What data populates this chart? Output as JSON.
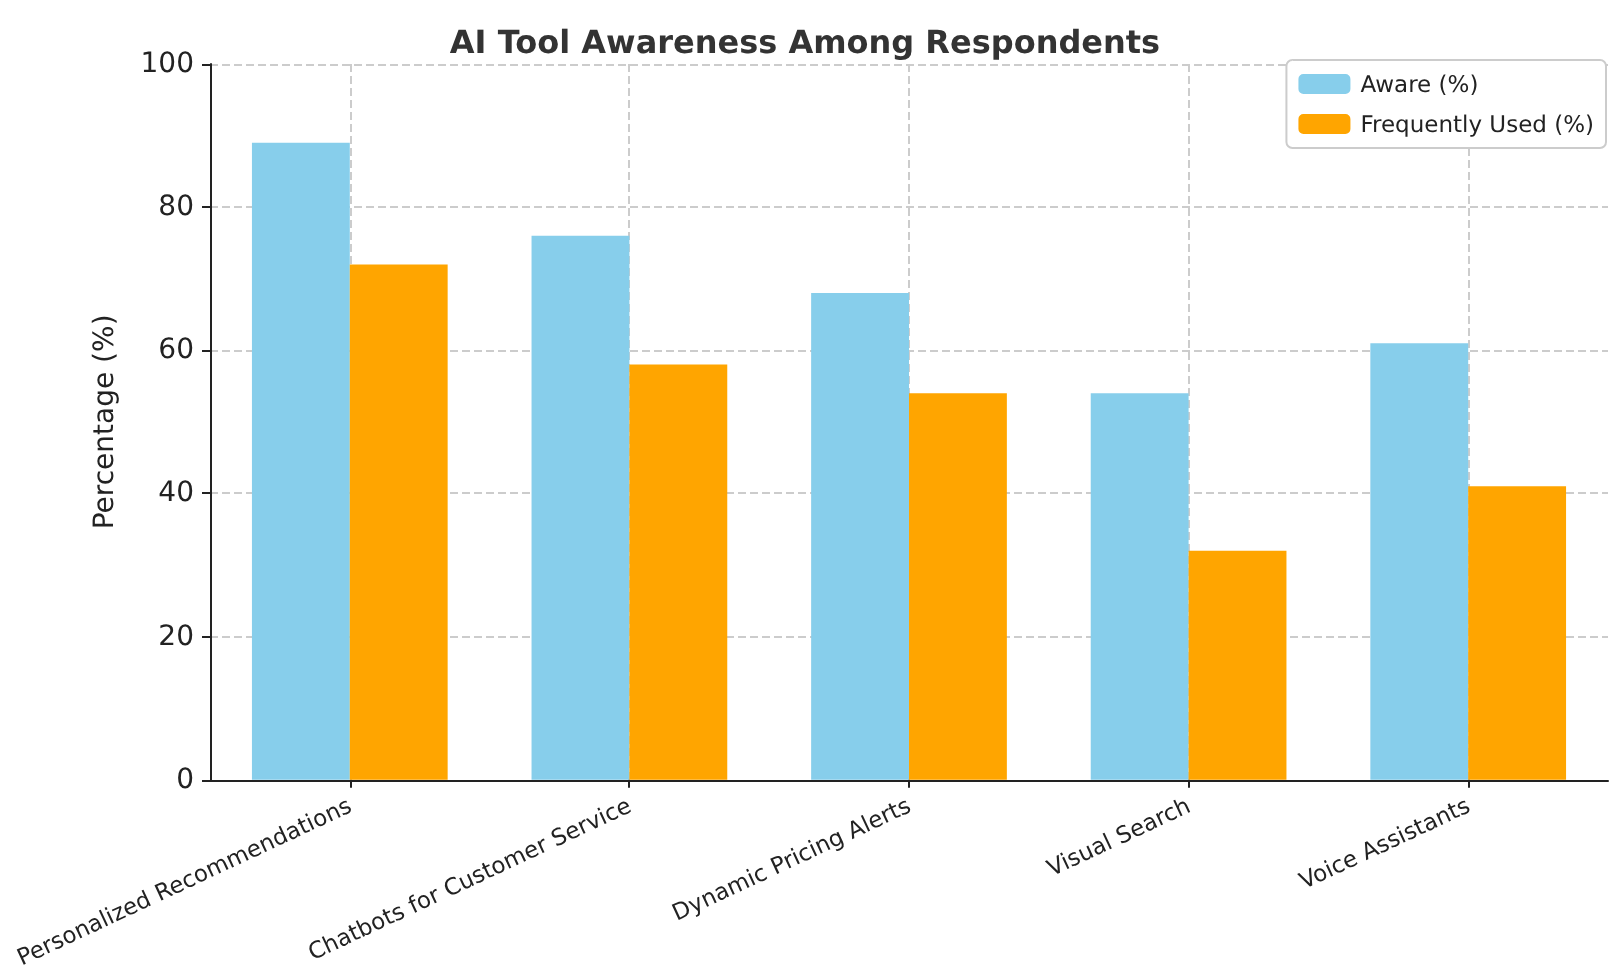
{
  "chart_data": {
    "type": "bar",
    "title": "AI Tool Awareness Among Respondents",
    "ylabel": "Percentage (%)",
    "categories": [
      "Personalized Recommendations",
      "Chatbots for Customer Service",
      "Dynamic Pricing Alerts",
      "Visual Search",
      "Voice Assistants"
    ],
    "series": [
      {
        "name": "Aware (%)",
        "color": "#87ceeb",
        "values": [
          89,
          76,
          68,
          54,
          61
        ]
      },
      {
        "name": "Frequently Used (%)",
        "color": "#ffa500",
        "values": [
          72,
          58,
          54,
          32,
          41
        ]
      }
    ],
    "ylim": [
      0,
      100
    ],
    "yticks": [
      0,
      20,
      40,
      60,
      80,
      100
    ],
    "grid": true,
    "legend": "top right"
  }
}
